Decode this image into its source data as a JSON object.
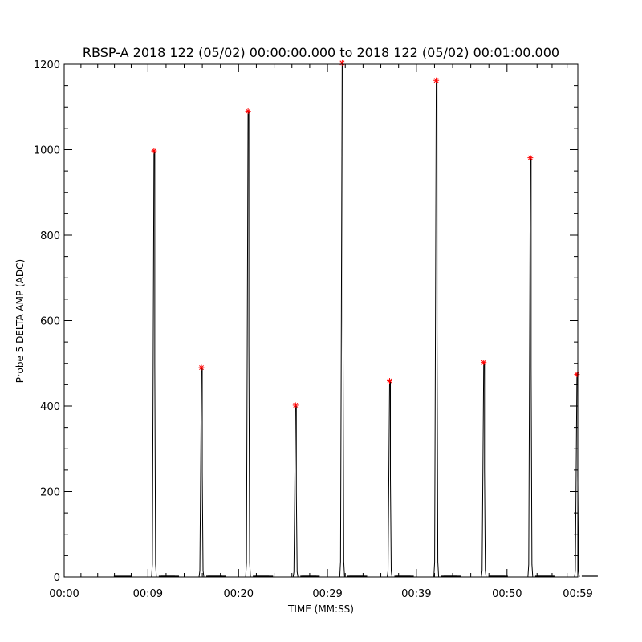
{
  "chart_data": {
    "type": "line",
    "title": "RBSP-A 2018 122 (05/02) 00:00:00.000 to 2018 122 (05/02) 00:01:00.000",
    "xlabel": "TIME (MM:SS)",
    "ylabel": "Probe 5 DELTA AMP (ADC)",
    "xlim": [
      0,
      59.5
    ],
    "ylim": [
      0,
      1200
    ],
    "x_ticks": [
      0,
      9.7,
      20.2,
      30.5,
      40.8,
      51.3,
      60
    ],
    "x_tick_labels": [
      "00:00",
      "00:09",
      "00:20",
      "00:29",
      "00:39",
      "00:50",
      "00:59"
    ],
    "y_ticks": [
      0,
      200,
      400,
      600,
      800,
      1000,
      1200
    ],
    "y_tick_labels": [
      "0",
      "200",
      "400",
      "600",
      "800",
      "1000",
      "1200"
    ],
    "grid": false,
    "series": [
      {
        "color": "#000000",
        "peaks": [
          {
            "x": 10.4,
            "value": 997
          },
          {
            "x": 15.9,
            "value": 490
          },
          {
            "x": 21.3,
            "value": 1090
          },
          {
            "x": 26.8,
            "value": 402
          },
          {
            "x": 32.2,
            "value": 1203
          },
          {
            "x": 37.7,
            "value": 459
          },
          {
            "x": 43.1,
            "value": 1162
          },
          {
            "x": 48.6,
            "value": 502
          },
          {
            "x": 54.0,
            "value": 981
          },
          {
            "x": 59.4,
            "value": 474
          }
        ]
      }
    ],
    "markers": {
      "symbol": "*",
      "color": "#ff0000",
      "points": [
        {
          "x": 10.4,
          "y": 997
        },
        {
          "x": 15.9,
          "y": 490
        },
        {
          "x": 21.3,
          "y": 1090
        },
        {
          "x": 26.8,
          "y": 402
        },
        {
          "x": 32.2,
          "y": 1203
        },
        {
          "x": 37.7,
          "y": 459
        },
        {
          "x": 43.1,
          "y": 1162
        },
        {
          "x": 48.6,
          "y": 502
        },
        {
          "x": 54.0,
          "y": 981
        },
        {
          "x": 59.4,
          "y": 474
        }
      ]
    }
  }
}
